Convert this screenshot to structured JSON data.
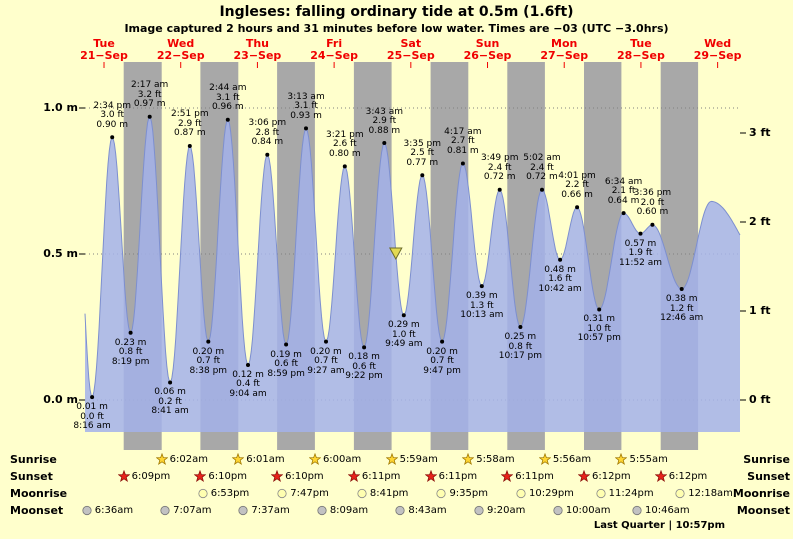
{
  "header": {
    "title": "Ingleses: falling  ordinary tide at 0.5m (1.6ft)",
    "subtitle": "Image captured 2 hours and 31 minutes before low water. Times are −03 (UTC −3.0hrs)"
  },
  "colors": {
    "background": "#ffffcc",
    "night_band": "#a8a8a8",
    "tide_fill": "#a3b2ea",
    "tide_line": "#7d8fcf",
    "day_label": "#f00000",
    "grid": "#808080",
    "dot": "#000000",
    "marker_fill": "#e3da52",
    "marker_stroke": "#6b6b2a"
  },
  "days": [
    {
      "name": "Tue",
      "date": "21−Sep"
    },
    {
      "name": "Wed",
      "date": "22−Sep"
    },
    {
      "name": "Thu",
      "date": "23−Sep"
    },
    {
      "name": "Fri",
      "date": "24−Sep"
    },
    {
      "name": "Sat",
      "date": "25−Sep"
    },
    {
      "name": "Sun",
      "date": "26−Sep"
    },
    {
      "name": "Mon",
      "date": "27−Sep"
    },
    {
      "name": "Tue",
      "date": "28−Sep"
    },
    {
      "name": "Wed",
      "date": "29−Sep"
    }
  ],
  "axes": {
    "left": [
      {
        "label": "1.0 m",
        "m": 1.0
      },
      {
        "label": "0.5 m",
        "m": 0.5
      },
      {
        "label": "0.0 m",
        "m": 0.0
      }
    ],
    "right": [
      {
        "label": "3 ft",
        "m": 0.9144
      },
      {
        "label": "2 ft",
        "m": 0.6096
      },
      {
        "label": "1 ft",
        "m": 0.3048
      },
      {
        "label": "0 ft",
        "m": 0.0
      }
    ]
  },
  "chart_data": {
    "type": "area",
    "title": "Ingleses tide height curve, Tue 21-Sep to Wed 29-Sep",
    "ylabel_left": "m",
    "ylabel_right": "ft",
    "ylim_m": [
      0,
      1.17
    ],
    "extremes": [
      {
        "day": 0,
        "time": "8:16 am",
        "kind": "low",
        "height_m": 0.01,
        "m_label": "0.01 m",
        "ft_label": "0.0 ft"
      },
      {
        "day": 0,
        "time": "2:34 pm",
        "kind": "high",
        "height_m": 0.9,
        "m_label": "0.90 m",
        "ft_label": "3.0 ft"
      },
      {
        "day": 0,
        "time": "8:19 pm",
        "kind": "low",
        "height_m": 0.23,
        "m_label": "0.23 m",
        "ft_label": "0.8 ft"
      },
      {
        "day": 1,
        "time": "2:17 am",
        "kind": "high",
        "height_m": 0.97,
        "m_label": "0.97 m",
        "ft_label": "3.2 ft"
      },
      {
        "day": 1,
        "time": "8:41 am",
        "kind": "low",
        "height_m": 0.06,
        "m_label": "0.06 m",
        "ft_label": "0.2 ft"
      },
      {
        "day": 1,
        "time": "2:51 pm",
        "kind": "high",
        "height_m": 0.87,
        "m_label": "0.87 m",
        "ft_label": "2.9 ft"
      },
      {
        "day": 1,
        "time": "8:38 pm",
        "kind": "low",
        "height_m": 0.2,
        "m_label": "0.20 m",
        "ft_label": "0.7 ft"
      },
      {
        "day": 2,
        "time": "2:44 am",
        "kind": "high",
        "height_m": 0.96,
        "m_label": "0.96 m",
        "ft_label": "3.1 ft"
      },
      {
        "day": 2,
        "time": "9:04 am",
        "kind": "low",
        "height_m": 0.12,
        "m_label": "0.12 m",
        "ft_label": "0.4 ft"
      },
      {
        "day": 2,
        "time": "3:06 pm",
        "kind": "high",
        "height_m": 0.84,
        "m_label": "0.84 m",
        "ft_label": "2.8 ft"
      },
      {
        "day": 2,
        "time": "8:59 pm",
        "kind": "low",
        "height_m": 0.19,
        "m_label": "0.19 m",
        "ft_label": "0.6 ft"
      },
      {
        "day": 3,
        "time": "3:13 am",
        "kind": "high",
        "height_m": 0.93,
        "m_label": "0.93 m",
        "ft_label": "3.1 ft"
      },
      {
        "day": 3,
        "time": "9:27 am",
        "kind": "low",
        "height_m": 0.2,
        "m_label": "0.20 m",
        "ft_label": "0.7 ft"
      },
      {
        "day": 3,
        "time": "3:21 pm",
        "kind": "high",
        "height_m": 0.8,
        "m_label": "0.80 m",
        "ft_label": "2.6 ft"
      },
      {
        "day": 3,
        "time": "9:22 pm",
        "kind": "low",
        "height_m": 0.18,
        "m_label": "0.18 m",
        "ft_label": "0.6 ft"
      },
      {
        "day": 4,
        "time": "3:43 am",
        "kind": "high",
        "height_m": 0.88,
        "m_label": "0.88 m",
        "ft_label": "2.9 ft"
      },
      {
        "day": 4,
        "time": "9:49 am",
        "kind": "low",
        "height_m": 0.29,
        "m_label": "0.29 m",
        "ft_label": "1.0 ft"
      },
      {
        "day": 4,
        "time": "3:35 pm",
        "kind": "high",
        "height_m": 0.77,
        "m_label": "0.77 m",
        "ft_label": "2.5 ft"
      },
      {
        "day": 4,
        "time": "9:47 pm",
        "kind": "low",
        "height_m": 0.2,
        "m_label": "0.20 m",
        "ft_label": "0.7 ft"
      },
      {
        "day": 5,
        "time": "4:17 am",
        "kind": "high",
        "height_m": 0.81,
        "m_label": "0.81 m",
        "ft_label": "2.7 ft"
      },
      {
        "day": 5,
        "time": "10:13 am",
        "kind": "low",
        "height_m": 0.39,
        "m_label": "0.39 m",
        "ft_label": "1.3 ft"
      },
      {
        "day": 5,
        "time": "3:49 pm",
        "kind": "high",
        "height_m": 0.72,
        "m_label": "0.72 m",
        "ft_label": "2.4 ft"
      },
      {
        "day": 5,
        "time": "10:17 pm",
        "kind": "low",
        "height_m": 0.25,
        "m_label": "0.25 m",
        "ft_label": "0.8 ft"
      },
      {
        "day": 6,
        "time": "5:02 am",
        "kind": "high",
        "height_m": 0.72,
        "m_label": "0.72 m",
        "ft_label": "2.4 ft"
      },
      {
        "day": 6,
        "time": "10:42 am",
        "kind": "low",
        "height_m": 0.48,
        "m_label": "0.48 m",
        "ft_label": "1.6 ft"
      },
      {
        "day": 6,
        "time": "4:01 pm",
        "kind": "high",
        "height_m": 0.66,
        "m_label": "0.66 m",
        "ft_label": "2.2 ft"
      },
      {
        "day": 6,
        "time": "10:57 pm",
        "kind": "low",
        "height_m": 0.31,
        "m_label": "0.31 m",
        "ft_label": "1.0 ft"
      },
      {
        "day": 7,
        "time": "6:34 am",
        "kind": "high",
        "height_m": 0.64,
        "m_label": "0.64 m",
        "ft_label": "2.1 ft"
      },
      {
        "day": 7,
        "time": "11:52 am",
        "kind": "low",
        "height_m": 0.57,
        "m_label": "0.57 m",
        "ft_label": "1.9 ft"
      },
      {
        "day": 7,
        "time": "3:36 pm",
        "kind": "high",
        "height_m": 0.6,
        "m_label": "0.60 m",
        "ft_label": "2.0 ft"
      },
      {
        "day": 8,
        "time": "12:46 am",
        "kind": "low",
        "height_m": 0.38,
        "m_label": "0.38 m",
        "ft_label": "1.2 ft"
      }
    ],
    "boundary": [
      {
        "day": 0,
        "time": "2:12 am",
        "height_m": 0.98
      },
      {
        "day": 8,
        "time": "10:00 am",
        "height_m": 0.68
      },
      {
        "day": 9,
        "time": "4:00 am",
        "height_m": 0.45
      }
    ],
    "marker": {
      "day": 4,
      "time": "7:18 am",
      "height_m": 0.5
    }
  },
  "astro": {
    "rows": [
      {
        "label": "Sunrise",
        "icon": "star",
        "icon_name": "sunrise-star-icon",
        "fill": "#ffd633",
        "stroke": "#a07800",
        "events": [
          {
            "day": 1,
            "time": "6:02am"
          },
          {
            "day": 2,
            "time": "6:01am"
          },
          {
            "day": 3,
            "time": "6:00am"
          },
          {
            "day": 4,
            "time": "5:59am"
          },
          {
            "day": 5,
            "time": "5:58am"
          },
          {
            "day": 6,
            "time": "5:56am"
          },
          {
            "day": 7,
            "time": "5:55am"
          }
        ]
      },
      {
        "label": "Sunset",
        "icon": "star",
        "icon_name": "sunset-star-icon",
        "fill": "#e8231a",
        "stroke": "#8c0f0a",
        "events": [
          {
            "day": 0,
            "time": "6:09pm"
          },
          {
            "day": 1,
            "time": "6:10pm"
          },
          {
            "day": 2,
            "time": "6:10pm"
          },
          {
            "day": 3,
            "time": "6:11pm"
          },
          {
            "day": 4,
            "time": "6:11pm"
          },
          {
            "day": 5,
            "time": "6:11pm"
          },
          {
            "day": 6,
            "time": "6:12pm"
          },
          {
            "day": 7,
            "time": "6:12pm"
          }
        ]
      },
      {
        "label": "Moonrise",
        "icon": "circle",
        "icon_name": "moonrise-moon-icon",
        "fill": "#ffffb0",
        "stroke": "#8a8a8a",
        "events": [
          {
            "day": 1,
            "time": "6:53pm"
          },
          {
            "day": 2,
            "time": "7:47pm"
          },
          {
            "day": 3,
            "time": "8:41pm"
          },
          {
            "day": 4,
            "time": "9:35pm"
          },
          {
            "day": 5,
            "time": "10:29pm"
          },
          {
            "day": 6,
            "time": "11:24pm"
          },
          {
            "day": 8,
            "time": "12:18am"
          }
        ]
      },
      {
        "label": "Moonset",
        "icon": "circle",
        "icon_name": "moonset-moon-icon",
        "fill": "#c2c2c2",
        "stroke": "#777777",
        "events": [
          {
            "day": 0,
            "time": "6:36am"
          },
          {
            "day": 1,
            "time": "7:07am"
          },
          {
            "day": 2,
            "time": "7:37am"
          },
          {
            "day": 3,
            "time": "8:09am"
          },
          {
            "day": 4,
            "time": "8:43am"
          },
          {
            "day": 5,
            "time": "9:20am"
          },
          {
            "day": 6,
            "time": "10:00am"
          },
          {
            "day": 7,
            "time": "10:46am"
          }
        ]
      }
    ]
  },
  "footer": {
    "moon_phase": "Last Quarter | 10:57pm"
  }
}
